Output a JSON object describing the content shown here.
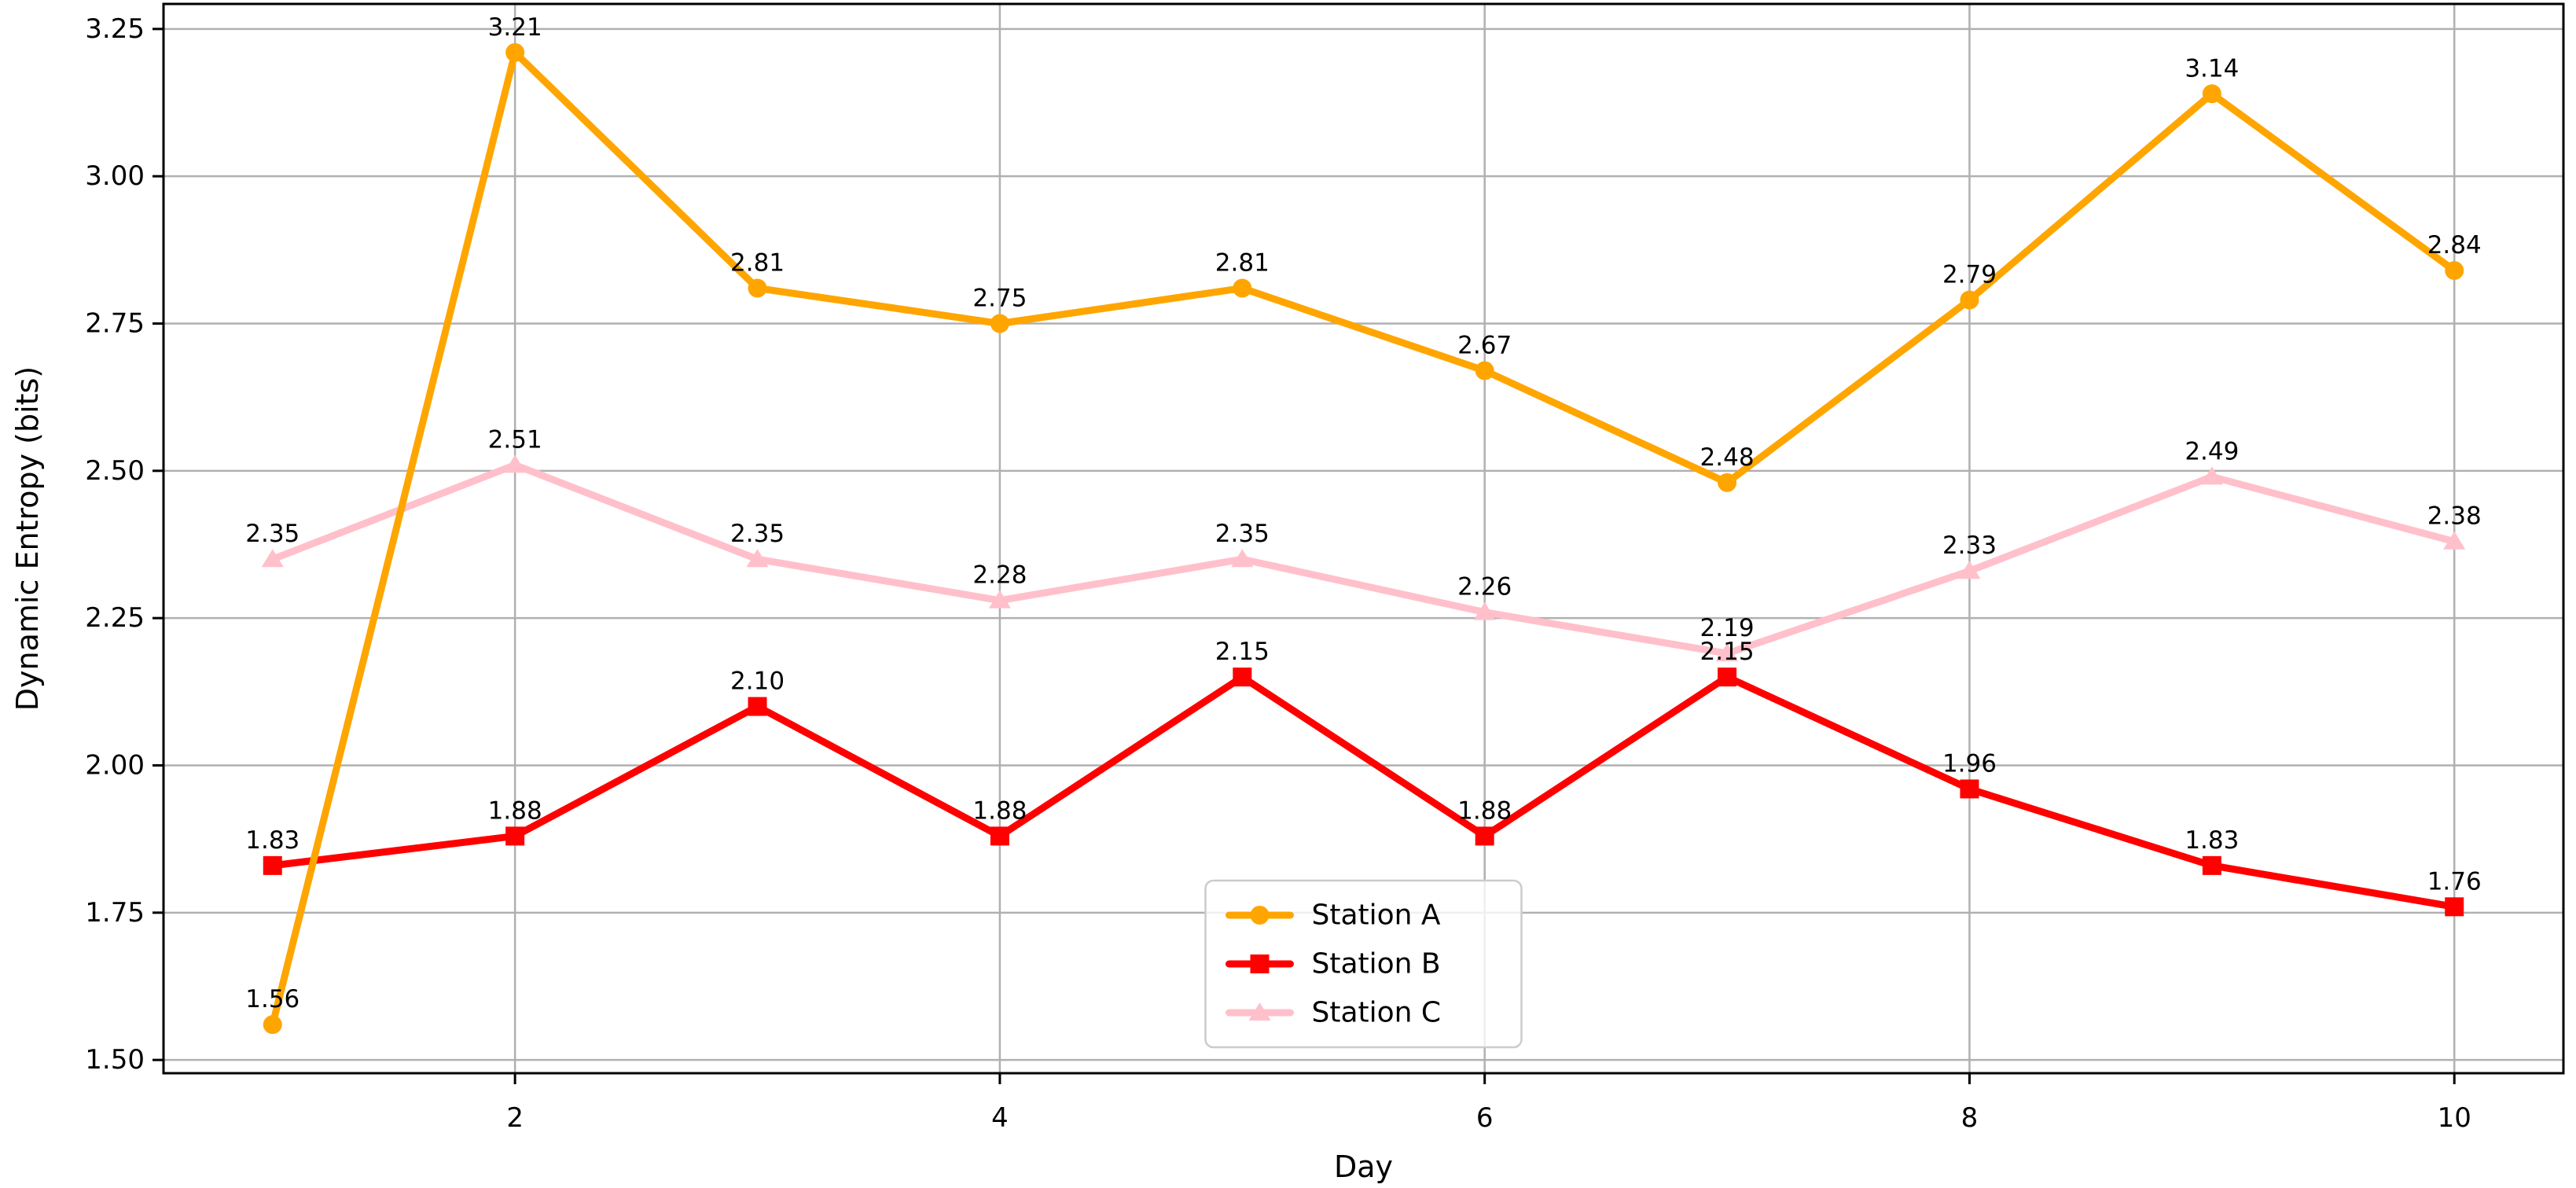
{
  "chart_data": {
    "type": "line",
    "x": [
      1,
      2,
      3,
      4,
      5,
      6,
      7,
      8,
      9,
      10
    ],
    "series": [
      {
        "name": "Station A",
        "color": "#FFA500",
        "marker": "circle",
        "values": [
          1.56,
          3.21,
          2.81,
          2.75,
          2.81,
          2.67,
          2.48,
          2.79,
          3.14,
          2.84
        ]
      },
      {
        "name": "Station B",
        "color": "#FF0000",
        "marker": "square",
        "values": [
          1.83,
          1.88,
          2.1,
          1.88,
          2.15,
          1.88,
          2.15,
          1.96,
          1.83,
          1.76
        ]
      },
      {
        "name": "Station C",
        "color": "#FFC0CB",
        "marker": "triangle",
        "values": [
          2.35,
          2.51,
          2.35,
          2.28,
          2.35,
          2.26,
          2.19,
          2.33,
          2.49,
          2.38
        ]
      }
    ],
    "title": "",
    "xlabel": "Day",
    "ylabel": "Dynamic Entropy (bits)",
    "xticks": [
      2,
      4,
      6,
      8,
      10
    ],
    "yticks": [
      1.5,
      1.75,
      2.0,
      2.25,
      2.5,
      2.75,
      3.0,
      3.25
    ],
    "xlim": [
      0.55,
      10.45
    ],
    "ylim": [
      1.4775,
      3.2925
    ],
    "grid": true,
    "value_labels": true,
    "legend_position": "lower center"
  },
  "figure": {
    "background": "#FFFFFF",
    "grid_color": "#B0B0B0",
    "spine_color": "#000000",
    "text_color": "#000000",
    "legend_border_color": "#CCCCCC",
    "legend_fill_opacity": 0.8
  }
}
